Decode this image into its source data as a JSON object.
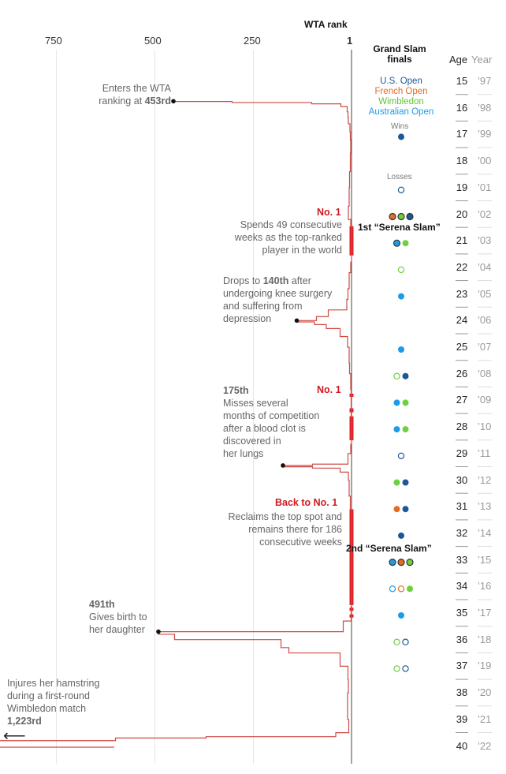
{
  "header": {
    "rank_label": "WTA rank",
    "finals_label": "Grand Slam finals",
    "age_label": "Age",
    "year_label": "Year"
  },
  "legend": {
    "us_open": "U.S. Open",
    "french_open": "French Open",
    "wimbledon": "Wimbledon",
    "australian_open": "Australian Open",
    "wins": "Wins",
    "losses": "Losses"
  },
  "colors": {
    "us_open": "#1d5799",
    "french_open": "#e56c25",
    "wimbledon": "#6dd13e",
    "australian_open": "#1d9be8",
    "line": "#cf4a43",
    "no1": "#e11f25"
  },
  "axis_ticks": [
    "750",
    "500",
    "250",
    "1"
  ],
  "annotations": {
    "enters_1": "Enters the WTA",
    "enters_2_pre": "ranking at ",
    "enters_2_val": "453rd",
    "no1_a": "No. 1",
    "spends_1": "Spends 49 consecutive",
    "spends_2": "weeks as the top-ranked",
    "spends_3": "player in the world",
    "drops_1_pre": "Drops to ",
    "drops_1_val": "140th",
    "drops_1_post": " after",
    "drops_2": "undergoing knee surgery",
    "drops_3": "and suffering from",
    "drops_4": "depression",
    "clot_rank": "175th",
    "no1_b": "No. 1",
    "clot_1": "Misses several",
    "clot_2": "months of competition",
    "clot_3": "after a blood clot is",
    "clot_4": "discovered in",
    "clot_5": "her lungs",
    "back_no1": "Back to No. 1",
    "reclaims_1": "Reclaims the top spot and",
    "reclaims_2": "remains there for 186",
    "reclaims_3": "consecutive weeks",
    "birth_rank": "491th",
    "birth_1": "Gives birth to",
    "birth_2": "her daughter",
    "ham_1": "Injures her hamstring",
    "ham_2": "during a first-round",
    "ham_3": "Wimbledon match",
    "ham_rank": "1,223rd",
    "slam_1": "1st “Serena Slam”",
    "slam_2": "2nd “Serena Slam”",
    "arrow": "⟵"
  },
  "years": [
    {
      "age": "15",
      "year": "’97"
    },
    {
      "age": "16",
      "year": "’98"
    },
    {
      "age": "17",
      "year": "’99"
    },
    {
      "age": "18",
      "year": "’00"
    },
    {
      "age": "19",
      "year": "’01"
    },
    {
      "age": "20",
      "year": "’02"
    },
    {
      "age": "21",
      "year": "’03"
    },
    {
      "age": "22",
      "year": "’04"
    },
    {
      "age": "23",
      "year": "’05"
    },
    {
      "age": "24",
      "year": "’06"
    },
    {
      "age": "25",
      "year": "’07"
    },
    {
      "age": "26",
      "year": "’08"
    },
    {
      "age": "27",
      "year": "’09"
    },
    {
      "age": "28",
      "year": "’10"
    },
    {
      "age": "29",
      "year": "’11"
    },
    {
      "age": "30",
      "year": "’12"
    },
    {
      "age": "31",
      "year": "’13"
    },
    {
      "age": "32",
      "year": "’14"
    },
    {
      "age": "33",
      "year": "’15"
    },
    {
      "age": "34",
      "year": "’16"
    },
    {
      "age": "35",
      "year": "’17"
    },
    {
      "age": "36",
      "year": "’18"
    },
    {
      "age": "37",
      "year": "’19"
    },
    {
      "age": "38",
      "year": "’20"
    },
    {
      "age": "39",
      "year": "’21"
    },
    {
      "age": "40",
      "year": "’22"
    }
  ],
  "chart_data": {
    "type": "line",
    "xlabel": "WTA rank",
    "ylabel": "Year",
    "xlim": [
      900,
      1
    ],
    "ylim": [
      1997.5,
      2022.8
    ],
    "grid": true,
    "series": [
      {
        "name": "",
        "points": [
          [
            1997.75,
            453
          ],
          [
            1997.76,
            304
          ],
          [
            1997.8,
            102
          ],
          [
            1997.85,
            28
          ],
          [
            1997.95,
            12
          ],
          [
            1998.15,
            10
          ],
          [
            1998.35,
            9
          ],
          [
            1998.6,
            5
          ],
          [
            1998.9,
            4
          ],
          [
            1999.2,
            3
          ],
          [
            1999.7,
            4
          ],
          [
            2000.4,
            6
          ],
          [
            2001.0,
            7
          ],
          [
            2001.7,
            9
          ],
          [
            2002.2,
            3
          ],
          [
            2002.45,
            1
          ],
          [
            2003.55,
            1
          ],
          [
            2003.8,
            3
          ],
          [
            2004.2,
            7
          ],
          [
            2004.8,
            10
          ],
          [
            2005.2,
            13
          ],
          [
            2005.6,
            60
          ],
          [
            2005.85,
            90
          ],
          [
            2006.0,
            140
          ],
          [
            2006.05,
            95
          ],
          [
            2006.15,
            65
          ],
          [
            2006.3,
            30
          ],
          [
            2006.6,
            11
          ],
          [
            2007.0,
            7
          ],
          [
            2007.6,
            6
          ],
          [
            2008.0,
            3
          ],
          [
            2008.6,
            2
          ],
          [
            2008.75,
            1
          ],
          [
            2008.8,
            2
          ],
          [
            2009.0,
            2
          ],
          [
            2009.3,
            1
          ],
          [
            2009.45,
            2
          ],
          [
            2009.6,
            1
          ],
          [
            2010.5,
            1
          ],
          [
            2010.65,
            3
          ],
          [
            2011.0,
            10
          ],
          [
            2011.4,
            100
          ],
          [
            2011.45,
            175
          ],
          [
            2011.5,
            100
          ],
          [
            2011.55,
            30
          ],
          [
            2011.7,
            9
          ],
          [
            2012.0,
            7
          ],
          [
            2012.6,
            4
          ],
          [
            2013.1,
            1
          ],
          [
            2016.7,
            1
          ],
          [
            2016.75,
            2
          ],
          [
            2016.85,
            1
          ],
          [
            2016.95,
            2
          ],
          [
            2017.1,
            1
          ],
          [
            2017.15,
            2
          ],
          [
            2017.3,
            22
          ],
          [
            2017.7,
            491
          ],
          [
            2017.8,
            450
          ],
          [
            2018.0,
            180
          ],
          [
            2018.3,
            160
          ],
          [
            2018.5,
            30
          ],
          [
            2019.0,
            10
          ],
          [
            2019.5,
            9
          ],
          [
            2020.0,
            11
          ],
          [
            2021.0,
            8
          ],
          [
            2021.5,
            41
          ],
          [
            2021.65,
            370
          ],
          [
            2021.7,
            600
          ],
          [
            2021.8,
            900
          ]
        ]
      }
    ],
    "no1_periods": [
      [
        2002.45,
        2003.55
      ],
      [
        2008.75,
        2008.8
      ],
      [
        2009.3,
        2009.45
      ],
      [
        2009.6,
        2010.5
      ],
      [
        2013.1,
        2016.7
      ],
      [
        2016.8,
        2016.9
      ],
      [
        2017.05,
        2017.12
      ]
    ],
    "markers": [
      [
        1997.75,
        453
      ],
      [
        2006.0,
        140
      ],
      [
        2011.45,
        175
      ],
      [
        2017.7,
        491
      ]
    ],
    "finals": [
      {
        "year": 1999,
        "slam": "us_open",
        "result": "win"
      },
      {
        "year": 2001,
        "slam": "us_open",
        "result": "loss"
      },
      {
        "year": 2002,
        "slam": "french_open",
        "result": "win"
      },
      {
        "year": 2002,
        "slam": "wimbledon",
        "result": "win"
      },
      {
        "year": 2002,
        "slam": "us_open",
        "result": "win"
      },
      {
        "year": 2003,
        "slam": "australian_open",
        "result": "win"
      },
      {
        "year": 2003,
        "slam": "wimbledon",
        "result": "win"
      },
      {
        "year": 2004,
        "slam": "wimbledon",
        "result": "loss"
      },
      {
        "year": 2005,
        "slam": "australian_open",
        "result": "win"
      },
      {
        "year": 2007,
        "slam": "australian_open",
        "result": "win"
      },
      {
        "year": 2008,
        "slam": "wimbledon",
        "result": "loss"
      },
      {
        "year": 2008,
        "slam": "us_open",
        "result": "win"
      },
      {
        "year": 2009,
        "slam": "australian_open",
        "result": "win"
      },
      {
        "year": 2009,
        "slam": "wimbledon",
        "result": "win"
      },
      {
        "year": 2010,
        "slam": "australian_open",
        "result": "win"
      },
      {
        "year": 2010,
        "slam": "wimbledon",
        "result": "win"
      },
      {
        "year": 2011,
        "slam": "us_open",
        "result": "loss"
      },
      {
        "year": 2012,
        "slam": "wimbledon",
        "result": "win"
      },
      {
        "year": 2012,
        "slam": "us_open",
        "result": "win"
      },
      {
        "year": 2013,
        "slam": "french_open",
        "result": "win"
      },
      {
        "year": 2013,
        "slam": "us_open",
        "result": "win"
      },
      {
        "year": 2014,
        "slam": "us_open",
        "result": "win"
      },
      {
        "year": 2015,
        "slam": "australian_open",
        "result": "win"
      },
      {
        "year": 2015,
        "slam": "french_open",
        "result": "win"
      },
      {
        "year": 2015,
        "slam": "wimbledon",
        "result": "win"
      },
      {
        "year": 2016,
        "slam": "australian_open",
        "result": "loss"
      },
      {
        "year": 2016,
        "slam": "french_open",
        "result": "loss"
      },
      {
        "year": 2016,
        "slam": "wimbledon",
        "result": "win"
      },
      {
        "year": 2017,
        "slam": "australian_open",
        "result": "win"
      },
      {
        "year": 2018,
        "slam": "wimbledon",
        "result": "loss"
      },
      {
        "year": 2018,
        "slam": "us_open",
        "result": "loss"
      },
      {
        "year": 2019,
        "slam": "wimbledon",
        "result": "loss"
      },
      {
        "year": 2019,
        "slam": "us_open",
        "result": "loss"
      }
    ]
  }
}
